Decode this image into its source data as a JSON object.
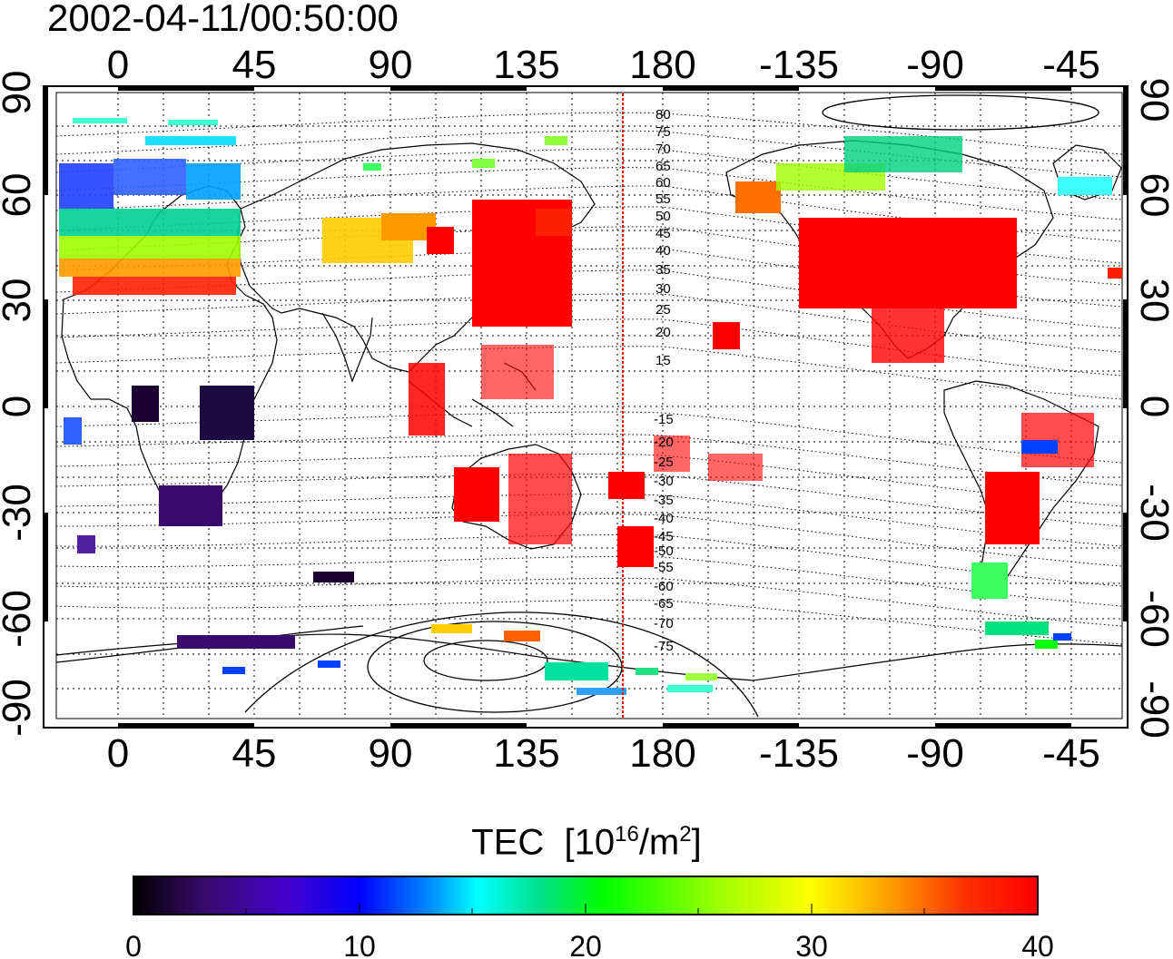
{
  "title": "2002-04-11/00:50:00",
  "axes": {
    "top_ticks": [
      "0",
      "45",
      "90",
      "135",
      "180",
      "-135",
      "-90",
      "-45"
    ],
    "bottom_ticks": [
      "0",
      "45",
      "90",
      "135",
      "180",
      "-135",
      "-90",
      "-45"
    ],
    "left_ticks": [
      "90",
      "60",
      "30",
      "0",
      "-30",
      "-60",
      "-90"
    ],
    "right_ticks": [
      "90",
      "60",
      "30",
      "0",
      "-30",
      "-60",
      "-90"
    ]
  },
  "contour_labels": [
    "80",
    "75",
    "70",
    "65",
    "60",
    "55",
    "50",
    "45",
    "40",
    "35",
    "30",
    "25",
    "20",
    "15",
    "-15",
    "-20",
    "-25",
    "-30",
    "-35",
    "-40",
    "-45",
    "-50",
    "-55",
    "-60",
    "-65",
    "-70",
    "-75"
  ],
  "colorbar": {
    "title_main": "TEC",
    "title_unit_pre": "[10",
    "title_unit_exp": "16",
    "title_unit_mid": "/m",
    "title_unit_exp2": "2",
    "title_unit_post": "]",
    "tick_labels": [
      "0",
      "10",
      "20",
      "30",
      "40"
    ],
    "min": 0,
    "max": 40,
    "colors": [
      "#000000",
      "#3a0a6e",
      "#4400cc",
      "#0000ff",
      "#0090ff",
      "#00ffff",
      "#00e08a",
      "#00ff00",
      "#a0ff00",
      "#ffff00",
      "#ff9900",
      "#ff3000",
      "#ff0000"
    ]
  },
  "colors": {
    "terminator_line": "#ff0000",
    "coastline": "#000000",
    "grid": "#000000"
  }
}
